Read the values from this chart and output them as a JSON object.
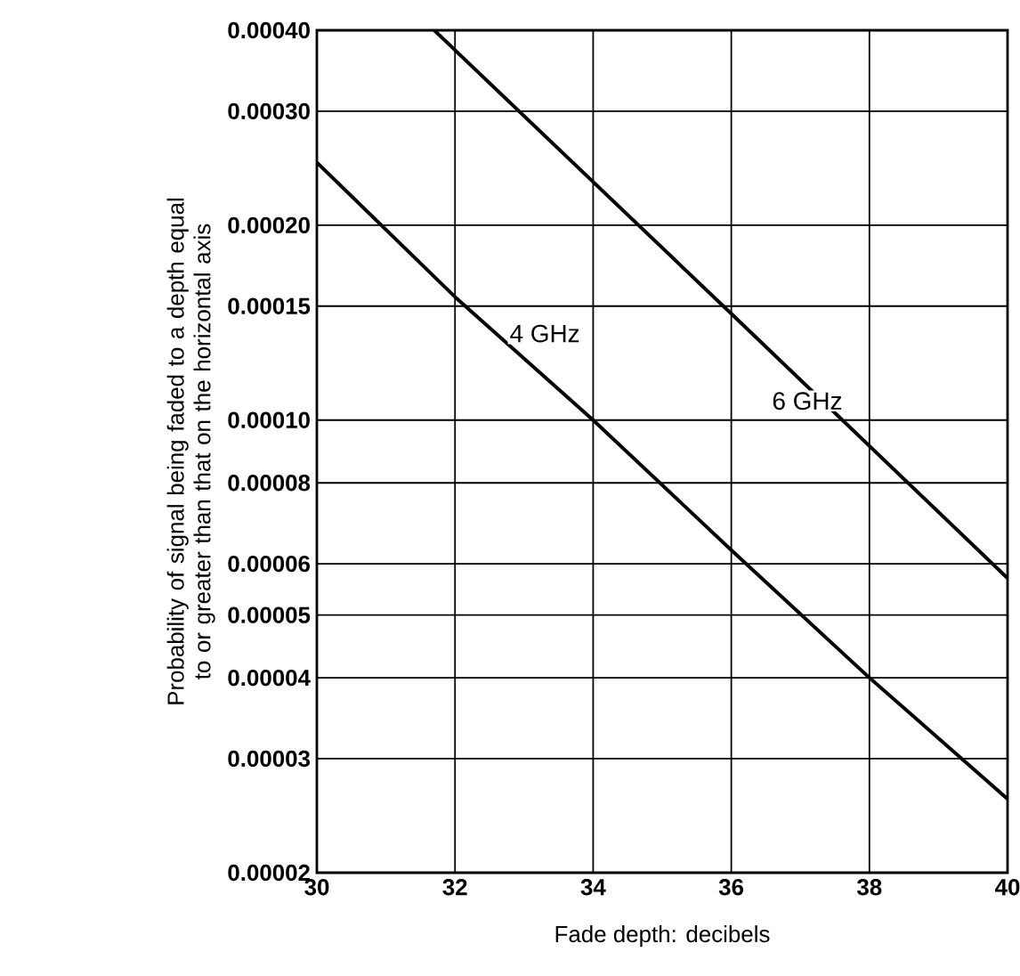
{
  "chart_data": {
    "type": "line",
    "xlabel": "Fade depth: decibels",
    "ylabel": "Probability of signal being faded to a depth equal to or greater than that on the horizontal axis",
    "log": "y",
    "grid": true,
    "marker": "none",
    "line_style": "solid",
    "xlim": [
      30,
      40
    ],
    "xticks": [
      30,
      32,
      34,
      36,
      38,
      40
    ],
    "ylim": [
      2e-05,
      0.0004
    ],
    "yticks": [
      {
        "value": 2e-05,
        "label": "0.00002"
      },
      {
        "value": 3e-05,
        "label": "0.00003"
      },
      {
        "value": 4e-05,
        "label": "0.00004"
      },
      {
        "value": 5e-05,
        "label": "0.00005"
      },
      {
        "value": 6e-05,
        "label": "0.00006"
      },
      {
        "value": 8e-05,
        "label": "0.00008"
      },
      {
        "value": 0.0001,
        "label": "0.00010"
      },
      {
        "value": 0.00015,
        "label": "0.00015"
      },
      {
        "value": 0.0002,
        "label": "0.00020"
      },
      {
        "value": 0.0003,
        "label": "0.00030"
      },
      {
        "value": 0.0004,
        "label": "0.00040"
      }
    ],
    "series": [
      {
        "color": "#000000",
        "x": [
          30,
          32,
          34,
          36,
          38,
          40
        ],
        "values": [
          0.00025,
          0.000155,
          0.0001,
          6.3e-05,
          4e-05,
          2.6e-05
        ]
      },
      {
        "color": "#000000",
        "x": [
          31.7,
          36,
          40
        ],
        "values": [
          0.0004,
          0.000146,
          5.7e-05
        ]
      }
    ],
    "annotations": [
      "4 GHz",
      "6 GHz"
    ]
  }
}
